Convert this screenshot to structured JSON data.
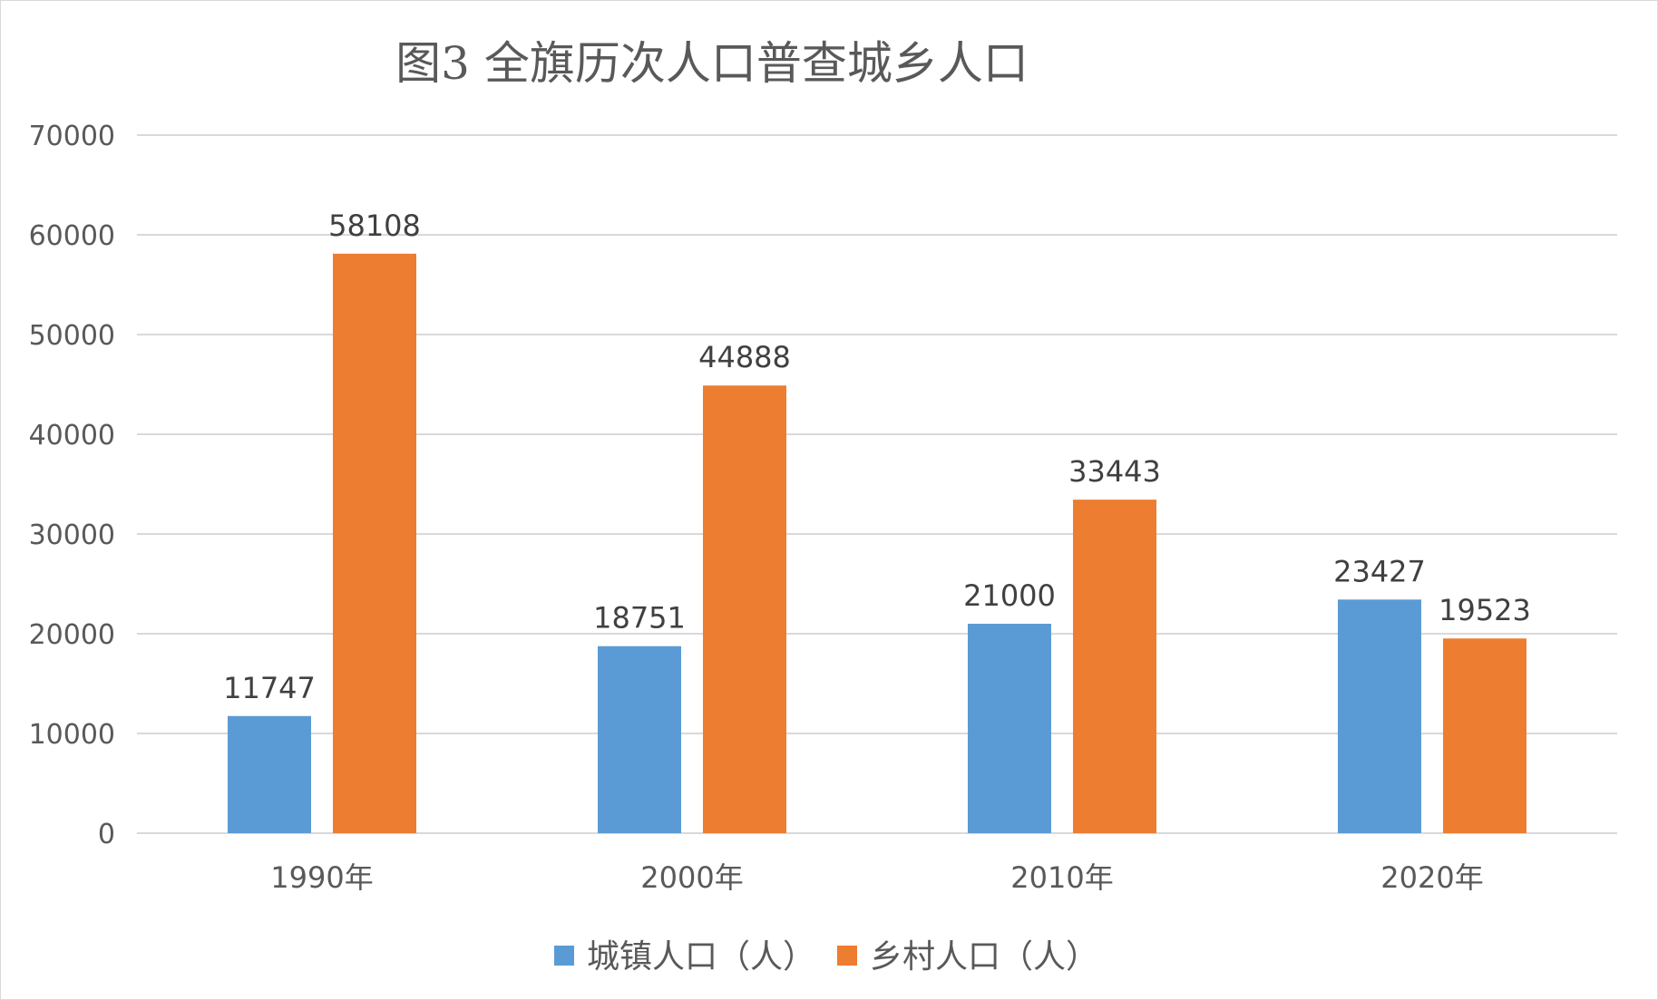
{
  "chart_data": {
    "type": "bar",
    "title": "图3 全旗历次人口普查城乡人口",
    "categories": [
      "1990年",
      "2000年",
      "2010年",
      "2020年"
    ],
    "series": [
      {
        "name": "城镇人口（人）",
        "color": "#5b9bd5",
        "values": [
          11747,
          18751,
          21000,
          23427
        ]
      },
      {
        "name": "乡村人口（人）",
        "color": "#ed7d31",
        "values": [
          58108,
          44888,
          33443,
          19523
        ]
      }
    ],
    "xlabel": "",
    "ylabel": "",
    "ylim": [
      0,
      70000
    ],
    "yticks": [
      0,
      10000,
      20000,
      30000,
      40000,
      50000,
      60000,
      70000
    ],
    "grid": true,
    "legend": "bottom",
    "data_labels": true
  }
}
